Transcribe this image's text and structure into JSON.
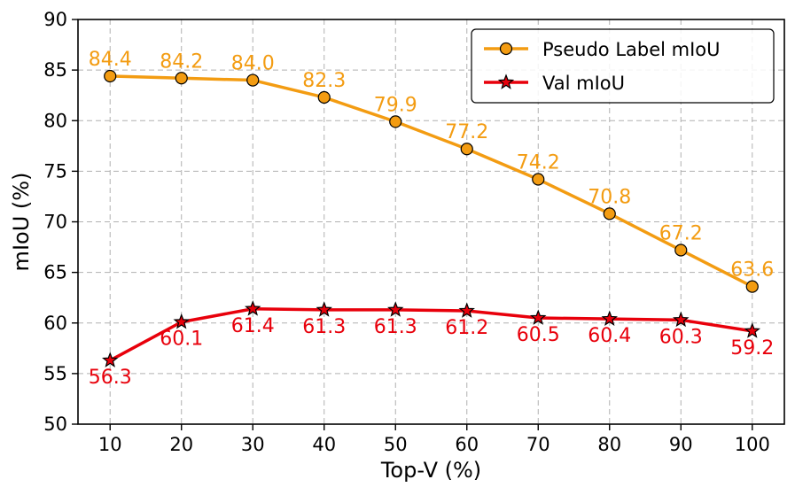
{
  "chart_data": {
    "type": "line",
    "x": [
      10,
      20,
      30,
      40,
      50,
      60,
      70,
      80,
      90,
      100
    ],
    "xlabel": "Top-V (%)",
    "ylabel": "mIoU (%)",
    "xticks": [
      "10",
      "20",
      "30",
      "40",
      "50",
      "60",
      "70",
      "80",
      "90",
      "100"
    ],
    "yticks": [
      "50",
      "55",
      "60",
      "65",
      "70",
      "75",
      "80",
      "85",
      "90"
    ],
    "ylim": [
      50,
      90
    ],
    "grid": true,
    "legend_position": "top-right",
    "series": [
      {
        "name": "Pseudo Label mIoU",
        "values": [
          84.4,
          84.2,
          84.0,
          82.3,
          79.9,
          77.2,
          74.2,
          70.8,
          67.2,
          63.6
        ],
        "labels": [
          "84.4",
          "84.2",
          "84.0",
          "82.3",
          "79.9",
          "77.2",
          "74.2",
          "70.8",
          "67.2",
          "63.6"
        ],
        "label_position": "above",
        "color": "#f39c12",
        "marker": "circle"
      },
      {
        "name": "Val mIoU",
        "values": [
          56.3,
          60.1,
          61.4,
          61.3,
          61.3,
          61.2,
          60.5,
          60.4,
          60.3,
          59.2
        ],
        "labels": [
          "56.3",
          "60.1",
          "61.4",
          "61.3",
          "61.3",
          "61.2",
          "60.5",
          "60.4",
          "60.3",
          "59.2"
        ],
        "label_position": "below",
        "color": "#e8000b",
        "marker": "star"
      }
    ]
  }
}
